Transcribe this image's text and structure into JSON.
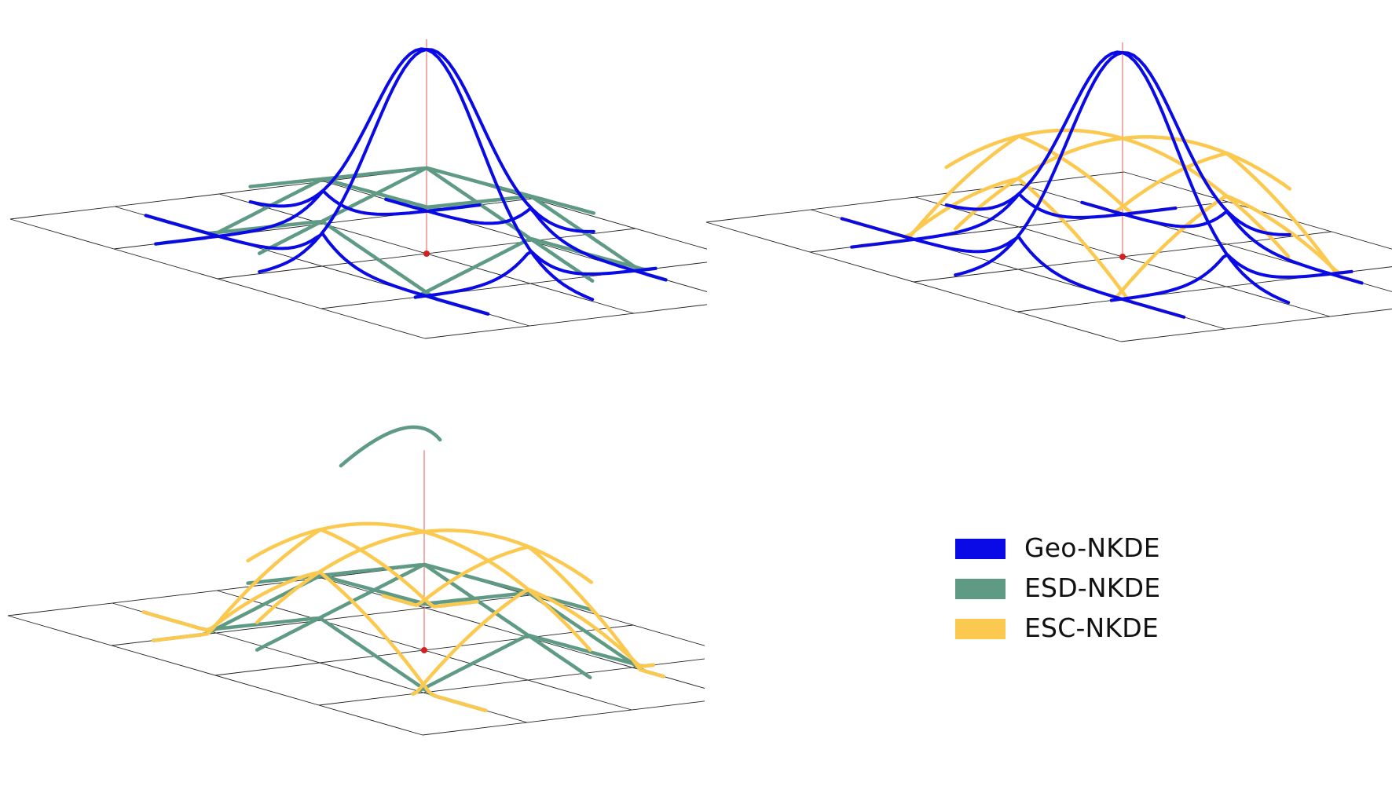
{
  "colors": {
    "geo": "#0a0ae6",
    "esd": "#5e9a84",
    "esc": "#fbc94f",
    "grid": "#222222",
    "event": "#d42020",
    "stem": "#e04848"
  },
  "panels": [
    {
      "id": "panel-geo-esd",
      "series": [
        "esd",
        "geo"
      ],
      "arc": false
    },
    {
      "id": "panel-geo-esc",
      "series": [
        "esc",
        "geo"
      ],
      "arc": false
    },
    {
      "id": "panel-esd-esc",
      "series": [
        "esd",
        "esc"
      ],
      "arc": true
    }
  ],
  "legend": [
    {
      "key": "geo",
      "label": "Geo-NKDE",
      "color": "#0a0ae6"
    },
    {
      "key": "esd",
      "label": "ESD-NKDE",
      "color": "#5e9a84"
    },
    {
      "key": "esc",
      "label": "ESC-NKDE",
      "color": "#fbc94f"
    }
  ]
}
